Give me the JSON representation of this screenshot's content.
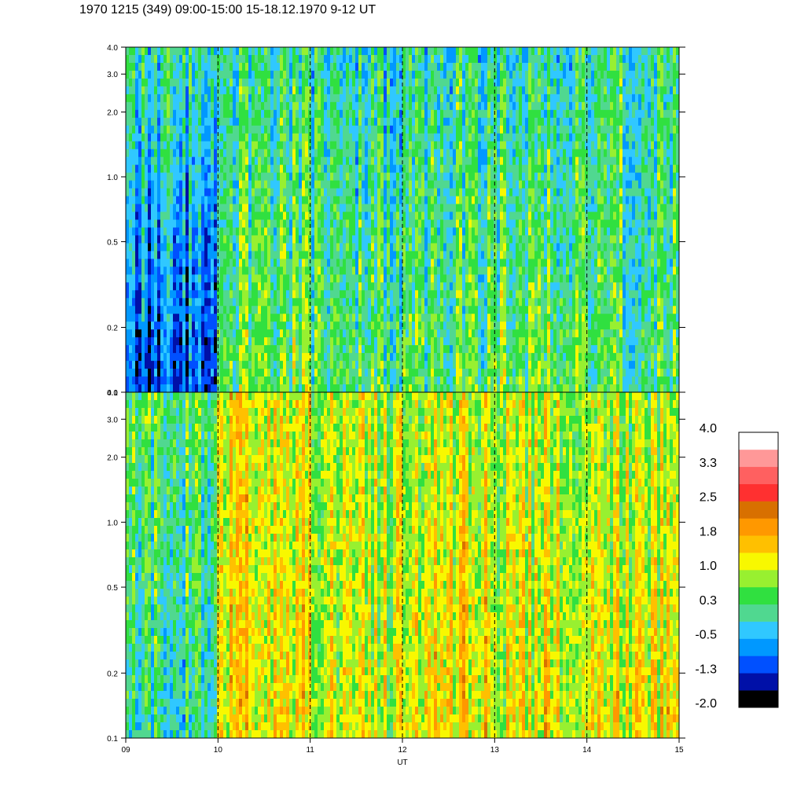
{
  "title": "1970 1215 (349) 09:00-15:00 15-18.12.1970  9-12 UT",
  "chart_data": {
    "type": "heatmap",
    "xlabel": "UT",
    "x_ticks": [
      "09",
      "10",
      "11",
      "12",
      "13",
      "14",
      "15"
    ],
    "xlim": [
      9,
      15
    ],
    "dashed_hour_lines": [
      10,
      11,
      12,
      13,
      14
    ],
    "y_scale": "log",
    "ylim": [
      0.1,
      4.0
    ],
    "y_ticks": [
      {
        "value": 0.1,
        "label": "0.1"
      },
      {
        "value": 0.2,
        "label": "0.2"
      },
      {
        "value": 0.5,
        "label": "0.5"
      },
      {
        "value": 1.0,
        "label": "1.0"
      },
      {
        "value": 2.0,
        "label": "2.0"
      },
      {
        "value": 3.0,
        "label": "3.0"
      },
      {
        "value": 4.0,
        "label": "4.0"
      }
    ],
    "panels": [
      {
        "id": "upper",
        "description_levels_by_hour": [
          {
            "hour": "09-10",
            "low_freq": -1.2,
            "high_freq": 0.0
          },
          {
            "hour": "10-11",
            "low_freq": 0.5,
            "high_freq": 0.0
          },
          {
            "hour": "11-12",
            "low_freq": 0.3,
            "high_freq": -0.1
          },
          {
            "hour": "12-13",
            "low_freq": 0.4,
            "high_freq": 0.0
          },
          {
            "hour": "13-14",
            "low_freq": 0.6,
            "high_freq": 0.0
          },
          {
            "hour": "14-15",
            "low_freq": 0.3,
            "high_freq": 0.1
          }
        ]
      },
      {
        "id": "lower",
        "description_levels_by_hour": [
          {
            "hour": "09-10",
            "low_freq": 0.0,
            "high_freq": 0.4
          },
          {
            "hour": "10-11",
            "low_freq": 1.3,
            "high_freq": 1.2
          },
          {
            "hour": "11-12",
            "low_freq": 1.0,
            "high_freq": 0.9
          },
          {
            "hour": "12-13",
            "low_freq": 1.4,
            "high_freq": 1.0
          },
          {
            "hour": "13-14",
            "low_freq": 1.2,
            "high_freq": 0.9
          },
          {
            "hour": "14-15",
            "low_freq": 1.3,
            "high_freq": 0.8
          }
        ]
      }
    ],
    "colorbar": {
      "range": [
        -2.0,
        4.0
      ],
      "labels": [
        "4.0",
        "3.3",
        "2.5",
        "1.8",
        "1.0",
        "0.3",
        "-0.5",
        "-1.3",
        "-2.0"
      ],
      "colors_bottom_to_top": [
        "#000000",
        "#0010a8",
        "#0050ff",
        "#0098ff",
        "#30c8ff",
        "#50d890",
        "#30e040",
        "#98f030",
        "#f8f800",
        "#ffc000",
        "#ff9800",
        "#d87000",
        "#ff3030",
        "#ff6060",
        "#ff9898",
        "#ffffff"
      ]
    }
  }
}
